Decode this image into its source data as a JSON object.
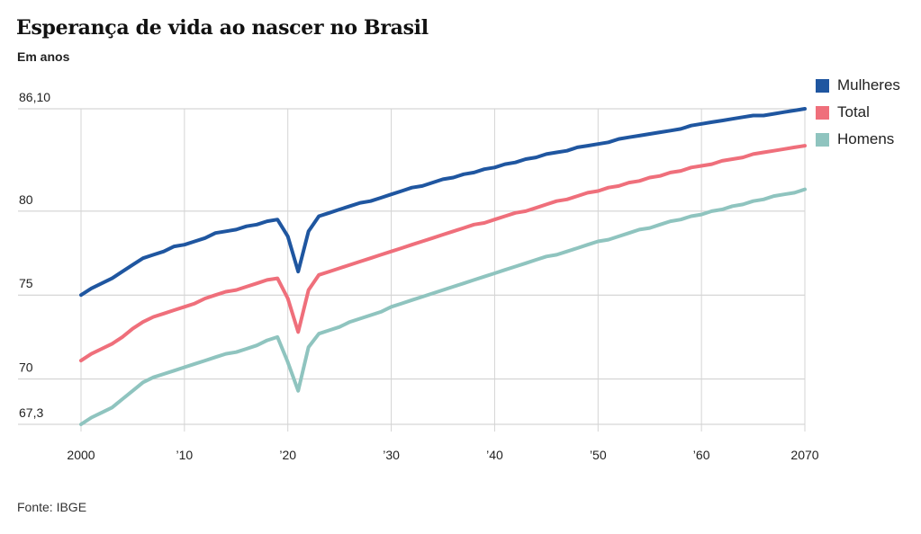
{
  "title": "Esperança de vida ao nascer no Brasil",
  "subtitle": "Em anos",
  "source": "Fonte: IBGE",
  "chart_data": {
    "type": "line",
    "title": "Esperança de vida ao nascer no Brasil",
    "subtitle": "Em anos",
    "xlabel": "",
    "ylabel": "",
    "xlim": [
      2000,
      2070
    ],
    "ylim": [
      67.3,
      86.1
    ],
    "grid": true,
    "legend_position": "top-right",
    "x_ticks": [
      {
        "value": 2000,
        "label": "2000"
      },
      {
        "value": 2010,
        "label": "’10"
      },
      {
        "value": 2020,
        "label": "’20"
      },
      {
        "value": 2030,
        "label": "’30"
      },
      {
        "value": 2040,
        "label": "’40"
      },
      {
        "value": 2050,
        "label": "’50"
      },
      {
        "value": 2060,
        "label": "’60"
      },
      {
        "value": 2070,
        "label": "2070"
      }
    ],
    "y_ticks": [
      {
        "value": 86.1,
        "label": "86,10"
      },
      {
        "value": 80,
        "label": "80"
      },
      {
        "value": 75,
        "label": "75"
      },
      {
        "value": 70,
        "label": "70"
      },
      {
        "value": 67.3,
        "label": "67,3"
      }
    ],
    "series": [
      {
        "name": "Mulheres",
        "color": "#1f56a0",
        "points": [
          [
            2000,
            75.0
          ],
          [
            2001,
            75.4
          ],
          [
            2002,
            75.7
          ],
          [
            2003,
            76.0
          ],
          [
            2004,
            76.4
          ],
          [
            2005,
            76.8
          ],
          [
            2006,
            77.2
          ],
          [
            2007,
            77.4
          ],
          [
            2008,
            77.6
          ],
          [
            2009,
            77.9
          ],
          [
            2010,
            78.0
          ],
          [
            2011,
            78.2
          ],
          [
            2012,
            78.4
          ],
          [
            2013,
            78.7
          ],
          [
            2014,
            78.8
          ],
          [
            2015,
            78.9
          ],
          [
            2016,
            79.1
          ],
          [
            2017,
            79.2
          ],
          [
            2018,
            79.4
          ],
          [
            2019,
            79.5
          ],
          [
            2020,
            78.5
          ],
          [
            2021,
            76.4
          ],
          [
            2022,
            78.8
          ],
          [
            2023,
            79.7
          ],
          [
            2024,
            79.9
          ],
          [
            2025,
            80.1
          ],
          [
            2026,
            80.3
          ],
          [
            2027,
            80.5
          ],
          [
            2028,
            80.6
          ],
          [
            2029,
            80.8
          ],
          [
            2030,
            81.0
          ],
          [
            2031,
            81.2
          ],
          [
            2032,
            81.4
          ],
          [
            2033,
            81.5
          ],
          [
            2034,
            81.7
          ],
          [
            2035,
            81.9
          ],
          [
            2036,
            82.0
          ],
          [
            2037,
            82.2
          ],
          [
            2038,
            82.3
          ],
          [
            2039,
            82.5
          ],
          [
            2040,
            82.6
          ],
          [
            2041,
            82.8
          ],
          [
            2042,
            82.9
          ],
          [
            2043,
            83.1
          ],
          [
            2044,
            83.2
          ],
          [
            2045,
            83.4
          ],
          [
            2046,
            83.5
          ],
          [
            2047,
            83.6
          ],
          [
            2048,
            83.8
          ],
          [
            2049,
            83.9
          ],
          [
            2050,
            84.0
          ],
          [
            2051,
            84.1
          ],
          [
            2052,
            84.3
          ],
          [
            2053,
            84.4
          ],
          [
            2054,
            84.5
          ],
          [
            2055,
            84.6
          ],
          [
            2056,
            84.7
          ],
          [
            2057,
            84.8
          ],
          [
            2058,
            84.9
          ],
          [
            2059,
            85.1
          ],
          [
            2060,
            85.2
          ],
          [
            2061,
            85.3
          ],
          [
            2062,
            85.4
          ],
          [
            2063,
            85.5
          ],
          [
            2064,
            85.6
          ],
          [
            2065,
            85.7
          ],
          [
            2066,
            85.7
          ],
          [
            2067,
            85.8
          ],
          [
            2068,
            85.9
          ],
          [
            2069,
            86.0
          ],
          [
            2070,
            86.1
          ]
        ]
      },
      {
        "name": "Total",
        "color": "#ef6f7b",
        "points": [
          [
            2000,
            71.1
          ],
          [
            2001,
            71.5
          ],
          [
            2002,
            71.8
          ],
          [
            2003,
            72.1
          ],
          [
            2004,
            72.5
          ],
          [
            2005,
            73.0
          ],
          [
            2006,
            73.4
          ],
          [
            2007,
            73.7
          ],
          [
            2008,
            73.9
          ],
          [
            2009,
            74.1
          ],
          [
            2010,
            74.3
          ],
          [
            2011,
            74.5
          ],
          [
            2012,
            74.8
          ],
          [
            2013,
            75.0
          ],
          [
            2014,
            75.2
          ],
          [
            2015,
            75.3
          ],
          [
            2016,
            75.5
          ],
          [
            2017,
            75.7
          ],
          [
            2018,
            75.9
          ],
          [
            2019,
            76.0
          ],
          [
            2020,
            74.8
          ],
          [
            2021,
            72.8
          ],
          [
            2022,
            75.3
          ],
          [
            2023,
            76.2
          ],
          [
            2024,
            76.4
          ],
          [
            2025,
            76.6
          ],
          [
            2026,
            76.8
          ],
          [
            2027,
            77.0
          ],
          [
            2028,
            77.2
          ],
          [
            2029,
            77.4
          ],
          [
            2030,
            77.6
          ],
          [
            2031,
            77.8
          ],
          [
            2032,
            78.0
          ],
          [
            2033,
            78.2
          ],
          [
            2034,
            78.4
          ],
          [
            2035,
            78.6
          ],
          [
            2036,
            78.8
          ],
          [
            2037,
            79.0
          ],
          [
            2038,
            79.2
          ],
          [
            2039,
            79.3
          ],
          [
            2040,
            79.5
          ],
          [
            2041,
            79.7
          ],
          [
            2042,
            79.9
          ],
          [
            2043,
            80.0
          ],
          [
            2044,
            80.2
          ],
          [
            2045,
            80.4
          ],
          [
            2046,
            80.6
          ],
          [
            2047,
            80.7
          ],
          [
            2048,
            80.9
          ],
          [
            2049,
            81.1
          ],
          [
            2050,
            81.2
          ],
          [
            2051,
            81.4
          ],
          [
            2052,
            81.5
          ],
          [
            2053,
            81.7
          ],
          [
            2054,
            81.8
          ],
          [
            2055,
            82.0
          ],
          [
            2056,
            82.1
          ],
          [
            2057,
            82.3
          ],
          [
            2058,
            82.4
          ],
          [
            2059,
            82.6
          ],
          [
            2060,
            82.7
          ],
          [
            2061,
            82.8
          ],
          [
            2062,
            83.0
          ],
          [
            2063,
            83.1
          ],
          [
            2064,
            83.2
          ],
          [
            2065,
            83.4
          ],
          [
            2066,
            83.5
          ],
          [
            2067,
            83.6
          ],
          [
            2068,
            83.7
          ],
          [
            2069,
            83.8
          ],
          [
            2070,
            83.9
          ]
        ]
      },
      {
        "name": "Homens",
        "color": "#8fc4bf",
        "points": [
          [
            2000,
            67.3
          ],
          [
            2001,
            67.7
          ],
          [
            2002,
            68.0
          ],
          [
            2003,
            68.3
          ],
          [
            2004,
            68.8
          ],
          [
            2005,
            69.3
          ],
          [
            2006,
            69.8
          ],
          [
            2007,
            70.1
          ],
          [
            2008,
            70.3
          ],
          [
            2009,
            70.5
          ],
          [
            2010,
            70.7
          ],
          [
            2011,
            70.9
          ],
          [
            2012,
            71.1
          ],
          [
            2013,
            71.3
          ],
          [
            2014,
            71.5
          ],
          [
            2015,
            71.6
          ],
          [
            2016,
            71.8
          ],
          [
            2017,
            72.0
          ],
          [
            2018,
            72.3
          ],
          [
            2019,
            72.5
          ],
          [
            2020,
            71.0
          ],
          [
            2021,
            69.3
          ],
          [
            2022,
            71.9
          ],
          [
            2023,
            72.7
          ],
          [
            2024,
            72.9
          ],
          [
            2025,
            73.1
          ],
          [
            2026,
            73.4
          ],
          [
            2027,
            73.6
          ],
          [
            2028,
            73.8
          ],
          [
            2029,
            74.0
          ],
          [
            2030,
            74.3
          ],
          [
            2031,
            74.5
          ],
          [
            2032,
            74.7
          ],
          [
            2033,
            74.9
          ],
          [
            2034,
            75.1
          ],
          [
            2035,
            75.3
          ],
          [
            2036,
            75.5
          ],
          [
            2037,
            75.7
          ],
          [
            2038,
            75.9
          ],
          [
            2039,
            76.1
          ],
          [
            2040,
            76.3
          ],
          [
            2041,
            76.5
          ],
          [
            2042,
            76.7
          ],
          [
            2043,
            76.9
          ],
          [
            2044,
            77.1
          ],
          [
            2045,
            77.3
          ],
          [
            2046,
            77.4
          ],
          [
            2047,
            77.6
          ],
          [
            2048,
            77.8
          ],
          [
            2049,
            78.0
          ],
          [
            2050,
            78.2
          ],
          [
            2051,
            78.3
          ],
          [
            2052,
            78.5
          ],
          [
            2053,
            78.7
          ],
          [
            2054,
            78.9
          ],
          [
            2055,
            79.0
          ],
          [
            2056,
            79.2
          ],
          [
            2057,
            79.4
          ],
          [
            2058,
            79.5
          ],
          [
            2059,
            79.7
          ],
          [
            2060,
            79.8
          ],
          [
            2061,
            80.0
          ],
          [
            2062,
            80.1
          ],
          [
            2063,
            80.3
          ],
          [
            2064,
            80.4
          ],
          [
            2065,
            80.6
          ],
          [
            2066,
            80.7
          ],
          [
            2067,
            80.9
          ],
          [
            2068,
            81.0
          ],
          [
            2069,
            81.1
          ],
          [
            2070,
            81.3
          ]
        ]
      }
    ]
  }
}
